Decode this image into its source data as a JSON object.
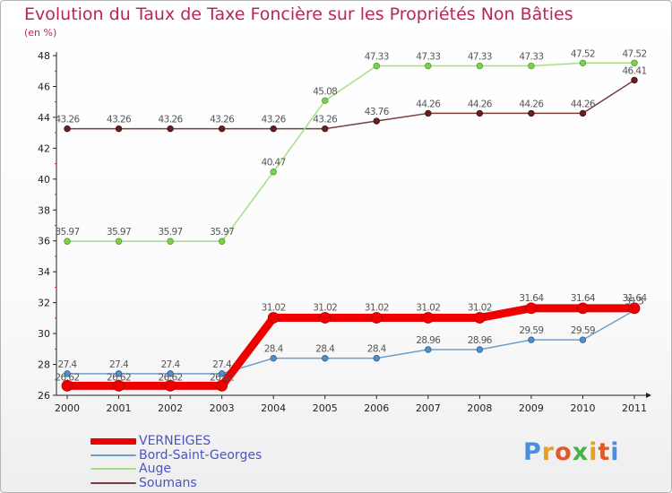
{
  "title": "Evolution du Taux de Taxe Foncière sur les Propriétés Non Bâties",
  "unit": "(en %)",
  "logo": "Proxiti",
  "chart_data": {
    "type": "line",
    "title": "Evolution du Taux de Taxe Foncière sur les Propriétés Non Bâties",
    "ylabel": "(en %)",
    "xlabel": "",
    "categories": [
      "2000",
      "2001",
      "2002",
      "2003",
      "2004",
      "2005",
      "2006",
      "2007",
      "2008",
      "2009",
      "2010",
      "2011"
    ],
    "ylim": [
      26,
      48
    ],
    "yticks": [
      26,
      28,
      30,
      32,
      34,
      36,
      38,
      40,
      42,
      44,
      46,
      48
    ],
    "grid": false,
    "legend_position": "bottom-left",
    "series": [
      {
        "name": "VERNEIGES",
        "color": "#ee0000",
        "values": [
          26.62,
          26.62,
          26.62,
          26.62,
          31.02,
          31.02,
          31.02,
          31.02,
          31.02,
          31.64,
          31.64,
          31.64
        ]
      },
      {
        "name": "Bord-Saint-Georges",
        "color": "#6f9fc8",
        "values": [
          27.4,
          27.4,
          27.4,
          27.4,
          28.4,
          28.4,
          28.4,
          28.96,
          28.96,
          29.59,
          29.59,
          31.5
        ]
      },
      {
        "name": "Auge",
        "color": "#a5de84",
        "values": [
          35.97,
          35.97,
          35.97,
          35.97,
          40.47,
          45.08,
          47.33,
          47.33,
          47.33,
          47.33,
          47.52,
          47.52
        ]
      },
      {
        "name": "Soumans",
        "color": "#7a3d3d",
        "values": [
          43.26,
          43.26,
          43.26,
          43.26,
          43.26,
          43.26,
          43.76,
          44.26,
          44.26,
          44.26,
          44.26,
          46.41
        ]
      }
    ]
  }
}
